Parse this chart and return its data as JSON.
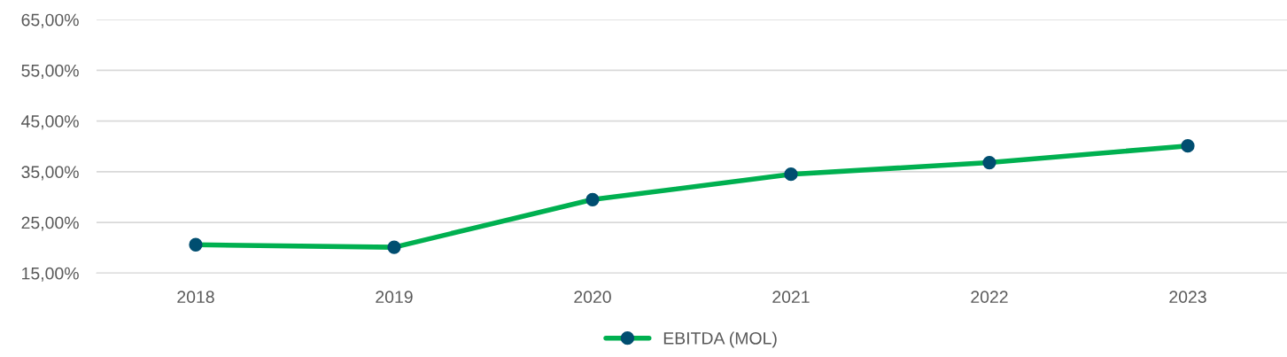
{
  "chart_data": {
    "type": "line",
    "categories": [
      "2018",
      "2019",
      "2020",
      "2021",
      "2022",
      "2023"
    ],
    "series": [
      {
        "name": "EBITDA (MOL)",
        "color": "#00b050",
        "values": [
          20.6,
          20.1,
          29.5,
          34.5,
          36.8,
          40.1
        ]
      }
    ],
    "ylim": [
      15,
      65
    ],
    "yticks": [
      {
        "value": 15,
        "label": "15,00%"
      },
      {
        "value": 25,
        "label": "25,00%"
      },
      {
        "value": 35,
        "label": "35,00%"
      },
      {
        "value": 45,
        "label": "45,00%"
      },
      {
        "value": 55,
        "label": "55,00%"
      },
      {
        "value": 65,
        "label": "65,00%"
      }
    ],
    "grid": "y",
    "legend": "bottom",
    "marker": "circle",
    "line_style": "solid"
  }
}
